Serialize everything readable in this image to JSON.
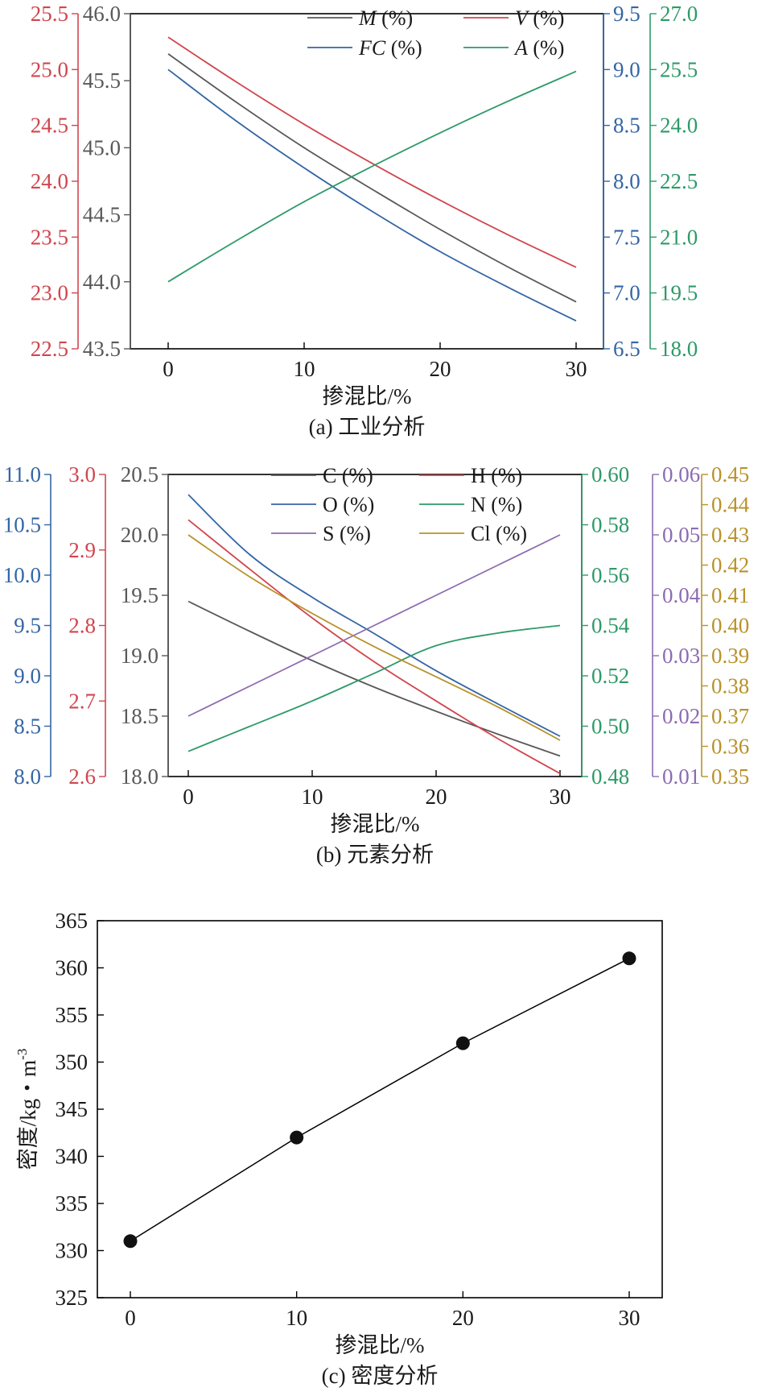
{
  "panels": [
    {
      "caption": "(a) 工业分析",
      "xlabel": "掺混比/%",
      "x_ticks": [
        "0",
        "10",
        "20",
        "30"
      ],
      "axes": [
        {
          "id": "V",
          "color": "#d0464e",
          "min": 22.5,
          "max": 25.5,
          "ticks": [
            "22.5",
            "23.0",
            "23.5",
            "24.0",
            "24.5",
            "25.0",
            "25.5"
          ]
        },
        {
          "id": "M",
          "color": "#595959",
          "min": 43.5,
          "max": 46.0,
          "ticks": [
            "43.5",
            "44.0",
            "44.5",
            "45.0",
            "45.5",
            "46.0"
          ]
        },
        {
          "id": "FC",
          "color": "#3465a4",
          "min": 6.5,
          "max": 9.5,
          "ticks": [
            "6.5",
            "7.0",
            "7.5",
            "8.0",
            "8.5",
            "9.0",
            "9.5"
          ]
        },
        {
          "id": "A",
          "color": "#2e9a68",
          "min": 18.0,
          "max": 27.0,
          "ticks": [
            "18.0",
            "19.5",
            "21.0",
            "22.5",
            "24.0",
            "25.5",
            "27.0"
          ]
        }
      ],
      "legend": [
        {
          "var": "M",
          "unit": " (%)",
          "color": "#595959",
          "italic": true
        },
        {
          "var": "V",
          "unit": " (%)",
          "color": "#d0464e",
          "italic": true
        },
        {
          "var": "FC",
          "unit": " (%)",
          "color": "#3465a4",
          "italic": true
        },
        {
          "var": "A",
          "unit": " (%)",
          "color": "#2e9a68",
          "italic": true
        }
      ]
    },
    {
      "caption": "(b) 元素分析",
      "xlabel": "掺混比/%",
      "x_ticks": [
        "0",
        "10",
        "20",
        "30"
      ],
      "axes": [
        {
          "id": "O",
          "color": "#3465a4",
          "min": 8.0,
          "max": 11.0,
          "ticks": [
            "8.0",
            "8.5",
            "9.0",
            "9.5",
            "10.0",
            "10.5",
            "11.0"
          ]
        },
        {
          "id": "H",
          "color": "#d0464e",
          "min": 2.6,
          "max": 3.0,
          "ticks": [
            "2.6",
            "2.7",
            "2.8",
            "2.9",
            "3.0"
          ]
        },
        {
          "id": "C",
          "color": "#595959",
          "min": 18.0,
          "max": 20.5,
          "ticks": [
            "18.0",
            "18.5",
            "19.0",
            "19.5",
            "20.0",
            "20.5"
          ]
        },
        {
          "id": "N",
          "color": "#2e9a68",
          "min": 0.48,
          "max": 0.6,
          "ticks": [
            "0.48",
            "0.50",
            "0.52",
            "0.54",
            "0.56",
            "0.58",
            "0.60"
          ]
        },
        {
          "id": "S",
          "color": "#8d6bb0",
          "min": 0.01,
          "max": 0.06,
          "ticks": [
            "0.01",
            "0.02",
            "0.03",
            "0.04",
            "0.05",
            "0.06"
          ]
        },
        {
          "id": "Cl",
          "color": "#b8922a",
          "min": 0.35,
          "max": 0.45,
          "ticks": [
            "0.35",
            "0.36",
            "0.37",
            "0.38",
            "0.39",
            "0.40",
            "0.41",
            "0.42",
            "0.43",
            "0.44",
            "0.45"
          ]
        }
      ],
      "legend": [
        {
          "var": "C",
          "unit": " (%)",
          "color": "#595959",
          "italic": false
        },
        {
          "var": "H",
          "unit": " (%)",
          "color": "#d0464e",
          "italic": false
        },
        {
          "var": "O",
          "unit": " (%)",
          "color": "#3465a4",
          "italic": false
        },
        {
          "var": "N",
          "unit": " (%)",
          "color": "#2e9a68",
          "italic": false
        },
        {
          "var": "S",
          "unit": " (%)",
          "color": "#8d6bb0",
          "italic": false
        },
        {
          "var": "Cl",
          "unit": " (%)",
          "color": "#b8922a",
          "italic": false
        }
      ]
    },
    {
      "caption": "(c) 密度分析",
      "xlabel": "掺混比/%",
      "ylabel": "密度/kg・m",
      "ylabel_sup": "-3",
      "x_ticks": [
        "0",
        "10",
        "20",
        "30"
      ],
      "y_ticks": [
        "325",
        "330",
        "335",
        "340",
        "345",
        "350",
        "355",
        "360",
        "365"
      ]
    }
  ],
  "chart_data": [
    {
      "type": "line",
      "xlabel": "掺混比/%",
      "x": [
        0,
        5,
        10,
        15,
        20,
        25,
        30
      ],
      "series": [
        {
          "name": "M (%)",
          "axis": "M",
          "ylim": [
            43.5,
            46.0
          ],
          "values": [
            45.7,
            45.34,
            45.0,
            44.69,
            44.39,
            44.11,
            43.85
          ]
        },
        {
          "name": "V (%)",
          "axis": "V",
          "ylim": [
            22.5,
            25.5
          ],
          "values": [
            25.29,
            24.89,
            24.51,
            24.16,
            23.83,
            23.52,
            23.23
          ]
        },
        {
          "name": "FC (%)",
          "axis": "FC",
          "ylim": [
            6.5,
            9.5
          ],
          "values": [
            9.0,
            8.54,
            8.12,
            7.73,
            7.37,
            7.05,
            6.75
          ]
        },
        {
          "name": "A (%)",
          "axis": "A",
          "ylim": [
            18.0,
            27.0
          ],
          "values": [
            19.8,
            20.9,
            21.95,
            22.9,
            23.8,
            24.65,
            25.45
          ]
        }
      ]
    },
    {
      "type": "line",
      "xlabel": "掺混比/%",
      "x": [
        0,
        5,
        10,
        15,
        20,
        25,
        30
      ],
      "series": [
        {
          "name": "C (%)",
          "axis": "C",
          "ylim": [
            18.0,
            20.5
          ],
          "values": [
            19.45,
            19.2,
            18.96,
            18.74,
            18.54,
            18.35,
            18.17
          ]
        },
        {
          "name": "H (%)",
          "axis": "H",
          "ylim": [
            2.6,
            3.0
          ],
          "values": [
            2.94,
            2.874,
            2.81,
            2.752,
            2.7,
            2.65,
            2.604
          ]
        },
        {
          "name": "O (%)",
          "axis": "O",
          "ylim": [
            8.0,
            11.0
          ],
          "values": [
            10.8,
            10.2,
            9.78,
            9.42,
            9.05,
            8.72,
            8.4
          ]
        },
        {
          "name": "N (%)",
          "axis": "N",
          "ylim": [
            0.48,
            0.6
          ],
          "values": [
            0.49,
            0.5,
            0.51,
            0.521,
            0.532,
            0.537,
            0.54
          ]
        },
        {
          "name": "S (%)",
          "axis": "S",
          "ylim": [
            0.01,
            0.06
          ],
          "values": [
            0.02,
            0.025,
            0.03,
            0.035,
            0.04,
            0.045,
            0.05
          ]
        },
        {
          "name": "Cl (%)",
          "axis": "Cl",
          "ylim": [
            0.35,
            0.45
          ],
          "values": [
            0.43,
            0.416,
            0.404,
            0.393,
            0.383,
            0.373,
            0.362
          ]
        }
      ]
    },
    {
      "type": "line",
      "xlabel": "掺混比/%",
      "ylabel": "密度/kg・m-3",
      "x": [
        0,
        10,
        20,
        30
      ],
      "values": [
        331,
        342,
        352,
        361
      ],
      "ylim": [
        325,
        365
      ],
      "markers": true
    }
  ]
}
